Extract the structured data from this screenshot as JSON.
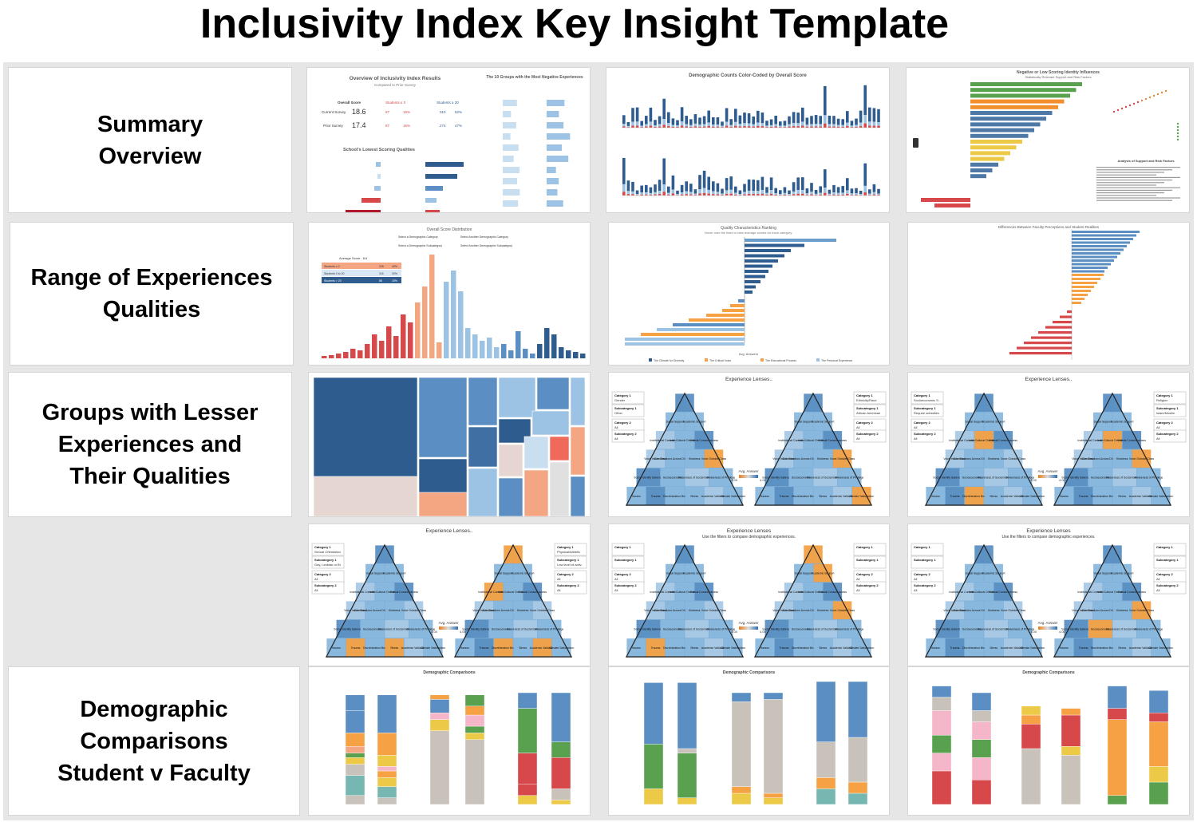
{
  "page": {
    "title": "Inclusivity Index Key Insight Template"
  },
  "rows": [
    {
      "label": "Summary\nOverview"
    },
    {
      "label": "Range of Experiences\nQualities"
    },
    {
      "label": "Groups with Lesser\nExperiences and\nTheir Qualities"
    },
    {
      "label": ""
    },
    {
      "label": "Demographic\nComparisons\nStudent v  Faculty"
    }
  ],
  "thumbs": {
    "r1c1": {
      "title": "Overview of Inclusivity Index Results",
      "sub": "Compared to Prior Survey",
      "side_title": "The 10 Groups with the Most Negative Experiences",
      "overall_label": "Overall Score",
      "students_lt0": "Students ≤ 0",
      "students_gt20": "Students ≥ 20",
      "current_label": "Current Survey",
      "current_score": "18.6",
      "prior_label": "Prior Survey",
      "prior_score": "17.4",
      "lowest_title": "School's Lowest Scoring Qualities",
      "c_lt0_n": "97",
      "c_lt0_p": "15%",
      "c_gt20_n": "310",
      "c_gt20_p": "52%",
      "p_lt0_n": "87",
      "p_lt0_p": "16%",
      "p_gt20_n": "274",
      "p_gt20_p": "47%"
    },
    "r1c2": {
      "title": "Demographic Counts Color-Coded by Overall Score"
    },
    "r1c3": {
      "title": "Negative or Low Scoring Identity Influences",
      "sub": "Statistically Relevant Support and Risk Factors",
      "note_title": "Analysis of Support and Risk Factors"
    },
    "r2c1": {
      "title": "Overall Score Distribution",
      "legend_title": "Average Score : 8.6",
      "rows": [
        {
          "label": "Students ≤ 0",
          "n": "226",
          "p": "40%"
        },
        {
          "label": "Students 0 to 20",
          "n": "116",
          "p": "20%"
        },
        {
          "label": "Students > 20",
          "n": "86",
          "p": "15%"
        }
      ],
      "filter1": "Select a Demographic Category",
      "filter2": "Select Another Demographic Category",
      "filter3": "Select a Demographic Subcategory",
      "filter4": "Select Another Demographic Subcategory"
    },
    "r2c2": {
      "title": "Quality Characteristics Ranking",
      "sub": "Hover over the lines to view average scores for each category.",
      "x_label": "Avg. Answers",
      "legend": [
        "The Climate for Diversity",
        "The Critical Voice",
        "The Educational Process",
        "The Personal Experience"
      ]
    },
    "r2c3": {
      "title": "Differences Between Faculty Perceptions and Student Realities"
    },
    "r4c2": {
      "sub": "Use the filters to compare demographic experiences."
    },
    "r4c3": {
      "sub": "Use the filters to compare demographic experiences."
    },
    "r5": {
      "title": "Demographic Comparisons"
    }
  },
  "lenses": {
    "title_dots": "Experience Lenses..",
    "title_plain": "Experience Lenses",
    "legend_title": "Avg. Answer",
    "legend_min": "-4.00",
    "legend_max": "4.00",
    "cat1": "Category 1",
    "sub1": "Subcategory 1",
    "cat2": "Category 2",
    "sub2": "Subcategory 2",
    "all": "All",
    "cells": [
      "Spirituality",
      "Social Support",
      "Academic Support",
      "Institutional Commitment",
      "Inter-Cultural Orientation",
      "Critical Consciousness",
      "Voice Inside Class",
      "Conversations Across Differences",
      "Kindness",
      "Voice Outside Class",
      "Social Identity Salience",
      "Socioeconomic",
      "Awareness of Social Identities",
      "Awareness of Privilege",
      "Harass",
      "Trauma",
      "Discrimination Bias",
      "Stress",
      "Academic Validation",
      "Climate Satisfaction"
    ],
    "r3c2": {
      "left_c1": "Gender",
      "left_s1": "Other",
      "right_c1": "Ethnicity/Race",
      "right_s1": "African American"
    },
    "r3c3": {
      "left_c1": "Socioeconomic S..",
      "left_s1": "Require subsidies",
      "right_c1": "Religion",
      "right_s1": "Islam/Muslim"
    },
    "r4c1": {
      "left_c1": "Sexual Orientation",
      "left_s1": "Gay, Lesbian or Bi",
      "right_c1": "Physical/Athletic",
      "right_s1": "Low level of activ.."
    }
  },
  "colors": {
    "dark_blue": "#2f5c8f",
    "mid_blue": "#5b8fc3",
    "light_blue": "#9cc3e4",
    "pale_blue": "#c9dff0",
    "red": "#d6484a",
    "salmon": "#f4a582",
    "orange": "#f5a144",
    "gray": "#c9c2bb",
    "green": "#59a14f",
    "pink": "#f6b6c9",
    "yellow": "#edc948",
    "teal": "#76b7b2"
  }
}
